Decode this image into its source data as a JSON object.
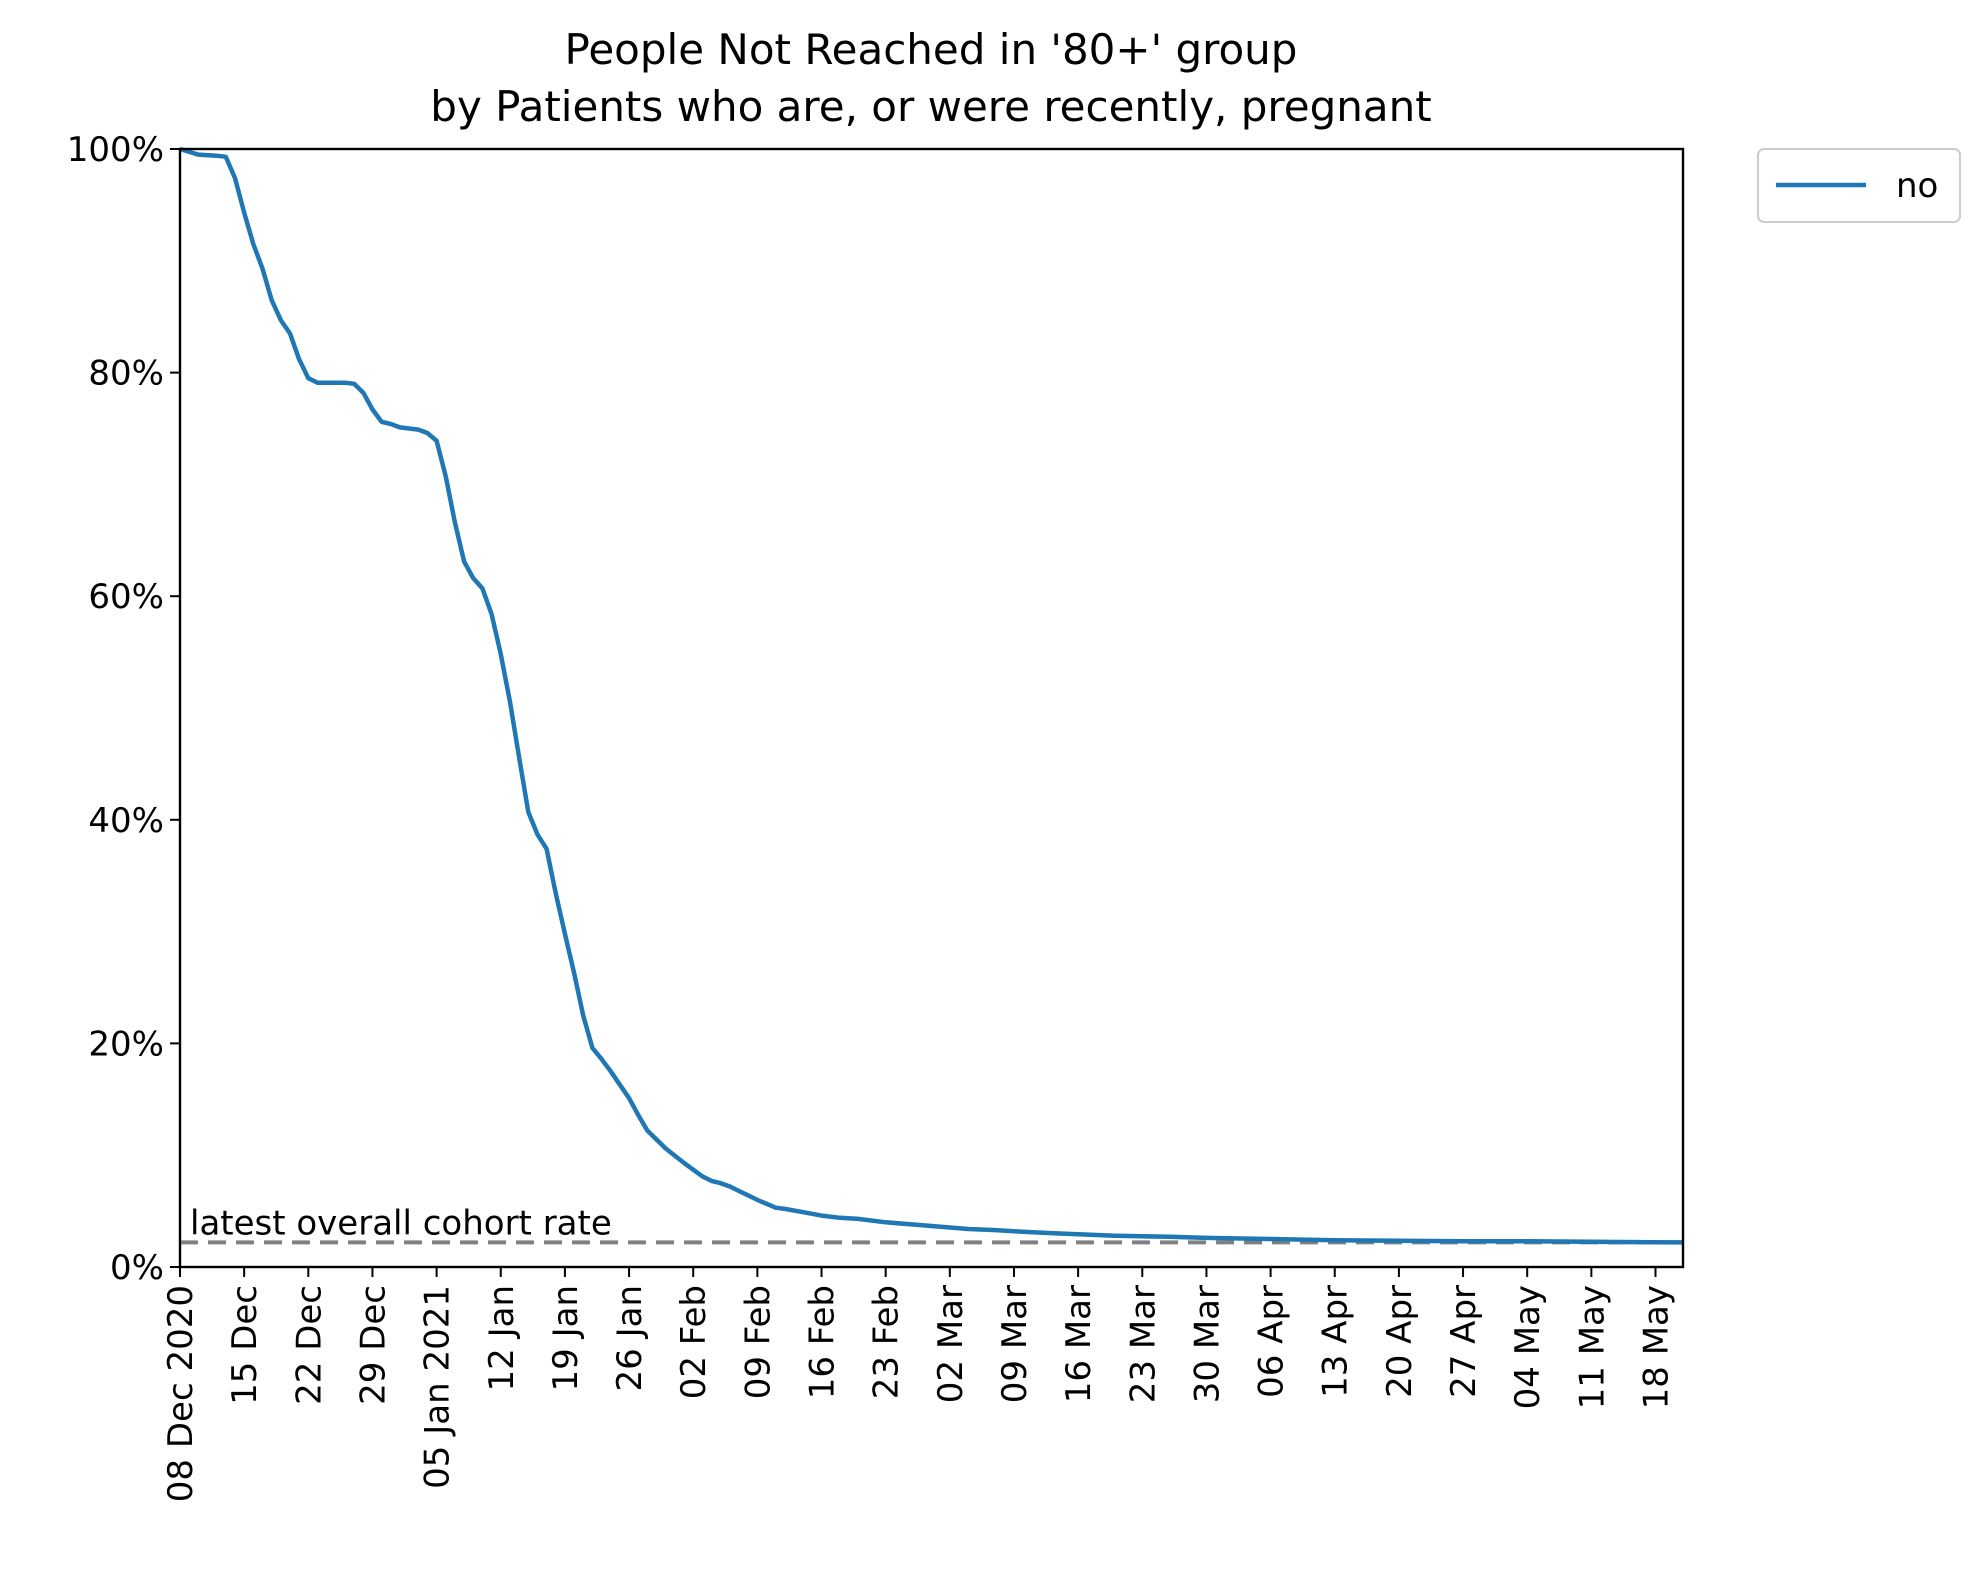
{
  "chart_data": {
    "type": "line",
    "title_line1": "People Not Reached in '80+' group",
    "title_line2": "by Patients who are, or were recently, pregnant",
    "xlabel": "",
    "ylabel": "",
    "x_range": [
      "2020-12-08",
      "2021-05-21"
    ],
    "ylim": [
      0,
      100
    ],
    "y_ticks": [
      0,
      20,
      40,
      60,
      80,
      100
    ],
    "y_tick_labels": [
      "0%",
      "20%",
      "40%",
      "60%",
      "80%",
      "100%"
    ],
    "x_ticks": [
      "2020-12-08",
      "2020-12-15",
      "2020-12-22",
      "2020-12-29",
      "2021-01-05",
      "2021-01-12",
      "2021-01-19",
      "2021-01-26",
      "2021-02-02",
      "2021-02-09",
      "2021-02-16",
      "2021-02-23",
      "2021-03-02",
      "2021-03-09",
      "2021-03-16",
      "2021-03-23",
      "2021-03-30",
      "2021-04-06",
      "2021-04-13",
      "2021-04-20",
      "2021-04-27",
      "2021-05-04",
      "2021-05-11",
      "2021-05-18"
    ],
    "x_tick_labels": [
      "08 Dec 2020",
      "15 Dec",
      "22 Dec",
      "29 Dec",
      "05 Jan 2021",
      "12 Jan",
      "19 Jan",
      "26 Jan",
      "02 Feb",
      "09 Feb",
      "16 Feb",
      "23 Feb",
      "02 Mar",
      "09 Mar",
      "16 Mar",
      "23 Mar",
      "30 Mar",
      "06 Apr",
      "13 Apr",
      "20 Apr",
      "27 Apr",
      "04 May",
      "11 May",
      "18 May"
    ],
    "grid": false,
    "legend_position": "outside top-right",
    "series": [
      {
        "name": "no",
        "color": "#1f77b4",
        "x": [
          "2020-12-08",
          "2020-12-10",
          "2020-12-12",
          "2020-12-13",
          "2020-12-14",
          "2020-12-15",
          "2020-12-16",
          "2020-12-17",
          "2020-12-18",
          "2020-12-19",
          "2020-12-20",
          "2020-12-21",
          "2020-12-22",
          "2020-12-23",
          "2020-12-24",
          "2020-12-25",
          "2020-12-26",
          "2020-12-27",
          "2020-12-28",
          "2020-12-29",
          "2020-12-30",
          "2020-12-31",
          "2021-01-01",
          "2021-01-02",
          "2021-01-03",
          "2021-01-04",
          "2021-01-05",
          "2021-01-06",
          "2021-01-07",
          "2021-01-08",
          "2021-01-09",
          "2021-01-10",
          "2021-01-11",
          "2021-01-12",
          "2021-01-13",
          "2021-01-14",
          "2021-01-15",
          "2021-01-16",
          "2021-01-17",
          "2021-01-18",
          "2021-01-19",
          "2021-01-20",
          "2021-01-21",
          "2021-01-22",
          "2021-01-23",
          "2021-01-24",
          "2021-01-25",
          "2021-01-26",
          "2021-01-27",
          "2021-01-28",
          "2021-01-30",
          "2021-02-01",
          "2021-02-03",
          "2021-02-04",
          "2021-02-05",
          "2021-02-06",
          "2021-02-07",
          "2021-02-09",
          "2021-02-11",
          "2021-02-12",
          "2021-02-14",
          "2021-02-16",
          "2021-02-18",
          "2021-02-20",
          "2021-02-23",
          "2021-02-26",
          "2021-03-01",
          "2021-03-04",
          "2021-03-07",
          "2021-03-09",
          "2021-03-11",
          "2021-03-14",
          "2021-03-17",
          "2021-03-20",
          "2021-03-23",
          "2021-03-26",
          "2021-03-30",
          "2021-04-06",
          "2021-04-13",
          "2021-04-20",
          "2021-04-27",
          "2021-05-04",
          "2021-05-11",
          "2021-05-21"
        ],
        "y": [
          100,
          99.5,
          99.4,
          99.3,
          97.4,
          94.3,
          91.5,
          89.3,
          86.5,
          84.7,
          83.5,
          81.2,
          79.5,
          79.1,
          79.1,
          79.1,
          79.1,
          79.0,
          78.2,
          76.7,
          75.6,
          75.4,
          75.1,
          75.0,
          74.9,
          74.6,
          73.9,
          70.7,
          66.6,
          63.1,
          61.6,
          60.7,
          58.4,
          54.8,
          50.6,
          45.6,
          40.7,
          38.7,
          37.4,
          33.4,
          29.8,
          26.3,
          22.5,
          19.6,
          18.6,
          17.5,
          16.3,
          15.1,
          13.6,
          12.2,
          10.6,
          9.3,
          8.1,
          7.7,
          7.5,
          7.2,
          6.8,
          6.0,
          5.3,
          5.2,
          4.9,
          4.6,
          4.4,
          4.3,
          4.0,
          3.8,
          3.6,
          3.4,
          3.3,
          3.2,
          3.1,
          3.0,
          2.9,
          2.8,
          2.75,
          2.7,
          2.6,
          2.5,
          2.4,
          2.35,
          2.3,
          2.3,
          2.25,
          2.2
        ]
      }
    ],
    "reference_line": {
      "label": "latest overall cohort rate",
      "value": 2.2,
      "color": "#808080",
      "style": "dashed"
    }
  }
}
